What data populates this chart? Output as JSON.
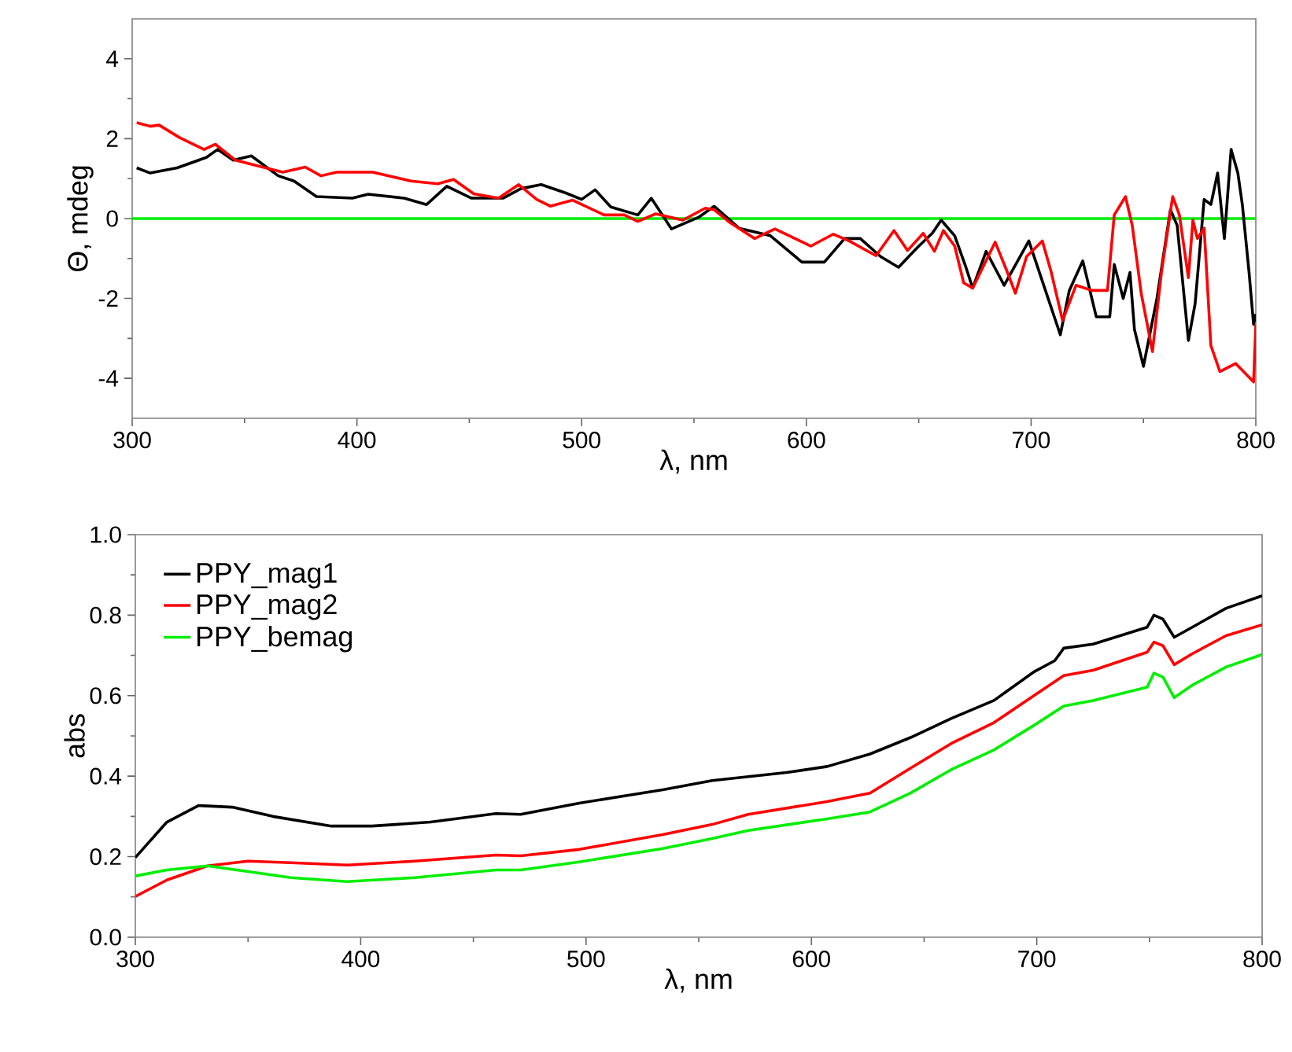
{
  "chart_data": [
    {
      "type": "line",
      "xlabel": "λ, nm",
      "ylabel": "Θ, mdeg",
      "xlim": [
        300,
        800
      ],
      "ylim": [
        -5,
        5
      ],
      "xticks": [
        300,
        400,
        500,
        600,
        700,
        800
      ],
      "yticks": [
        -4,
        -2,
        0,
        2,
        4
      ],
      "legend": false,
      "ref_lines": [
        {
          "axis": "y",
          "value": 0,
          "color": "#00ee00"
        }
      ],
      "series": [
        {
          "color": "#000000",
          "x": [
            302,
            308,
            320,
            333,
            338,
            345,
            353,
            365,
            372,
            382,
            398,
            405,
            421,
            431,
            440,
            451,
            465,
            473,
            482,
            493,
            500,
            506,
            513,
            525,
            531,
            540,
            552,
            559,
            570,
            584,
            598,
            608,
            617,
            624,
            633,
            641,
            650,
            656,
            660,
            666,
            671,
            674,
            680,
            688,
            699,
            708,
            713,
            717,
            723,
            729,
            735,
            737,
            741,
            744,
            746,
            750,
            756,
            762,
            765,
            770,
            773,
            777,
            780,
            783,
            786,
            789,
            792,
            794,
            797,
            799,
            800
          ],
          "values": [
            1.27,
            1.14,
            1.27,
            1.53,
            1.73,
            1.46,
            1.57,
            1.07,
            0.94,
            0.55,
            0.51,
            0.61,
            0.51,
            0.35,
            0.81,
            0.51,
            0.51,
            0.75,
            0.85,
            0.64,
            0.48,
            0.72,
            0.29,
            0.09,
            0.51,
            -0.26,
            0.03,
            0.31,
            -0.24,
            -0.43,
            -1.09,
            -1.09,
            -0.5,
            -0.5,
            -0.95,
            -1.22,
            -0.69,
            -0.37,
            -0.04,
            -0.43,
            -1.22,
            -1.74,
            -0.82,
            -1.67,
            -0.56,
            -2.07,
            -2.91,
            -1.8,
            -1.06,
            -2.46,
            -2.46,
            -1.15,
            -2.0,
            -1.35,
            -2.78,
            -3.7,
            -2.0,
            0.22,
            -0.17,
            -3.05,
            -2.13,
            0.48,
            0.35,
            1.14,
            -0.5,
            1.73,
            1.14,
            0.35,
            -1.35,
            -2.65,
            -2.39
          ]
        },
        {
          "color": "#ff0000",
          "x": [
            302,
            308,
            312,
            321,
            332,
            337,
            346,
            358,
            367,
            377,
            384,
            391,
            407,
            424,
            436,
            443,
            452,
            463,
            472,
            480,
            486,
            496,
            510,
            519,
            525,
            533,
            545,
            555,
            559,
            566,
            577,
            586,
            602,
            612,
            619,
            631,
            639,
            645,
            652,
            657,
            661,
            666,
            670,
            674,
            684,
            689,
            693,
            698,
            705,
            709,
            714,
            720,
            727,
            734,
            737,
            742,
            745,
            749,
            754,
            758,
            763,
            766,
            770,
            772,
            774,
            777,
            780,
            784,
            787,
            791,
            796,
            799,
            800
          ],
          "values": [
            2.4,
            2.31,
            2.34,
            2.03,
            1.73,
            1.86,
            1.46,
            1.29,
            1.16,
            1.29,
            1.07,
            1.16,
            1.16,
            0.94,
            0.87,
            0.98,
            0.62,
            0.51,
            0.85,
            0.48,
            0.31,
            0.46,
            0.09,
            0.09,
            -0.07,
            0.12,
            -0.04,
            0.26,
            0.22,
            -0.1,
            -0.5,
            -0.26,
            -0.69,
            -0.39,
            -0.56,
            -0.93,
            -0.3,
            -0.8,
            -0.37,
            -0.82,
            -0.3,
            -0.69,
            -1.61,
            -1.74,
            -0.59,
            -1.28,
            -1.87,
            -0.95,
            -0.56,
            -1.35,
            -2.55,
            -1.67,
            -1.8,
            -1.8,
            0.09,
            0.55,
            -0.17,
            -1.87,
            -3.33,
            -1.35,
            0.55,
            0.09,
            -1.48,
            -0.04,
            -0.5,
            -0.24,
            -3.18,
            -3.83,
            null,
            -3.63,
            null,
            -4.09,
            -2.65
          ]
        }
      ]
    },
    {
      "type": "line",
      "xlabel": "λ, nm",
      "ylabel": "abs",
      "xlim": [
        300,
        800
      ],
      "ylim": [
        0,
        1
      ],
      "xticks": [
        300,
        400,
        500,
        600,
        700,
        800
      ],
      "yticks": [
        {
          "value": 0,
          "label": "0.0"
        },
        {
          "value": 0.2,
          "label": "0.2"
        },
        {
          "value": 0.4,
          "label": "0.4"
        },
        {
          "value": 0.6,
          "label": "0.6"
        },
        {
          "value": 0.8,
          "label": "0.8"
        },
        {
          "value": 1,
          "label": "1.0"
        }
      ],
      "legend": "top left",
      "series": [
        {
          "name": "PPY_mag1",
          "color": "#000000",
          "x": [
            300,
            314,
            328,
            343,
            361,
            387,
            405,
            431,
            460,
            471,
            497,
            534,
            556,
            589,
            607,
            626,
            644,
            662,
            681,
            699,
            708,
            712,
            725,
            749,
            752,
            756,
            761,
            769,
            784,
            800
          ],
          "values": [
            0.198,
            0.286,
            0.327,
            0.323,
            0.3,
            0.276,
            0.276,
            0.286,
            0.307,
            0.305,
            0.333,
            0.366,
            0.389,
            0.409,
            0.424,
            0.455,
            0.496,
            0.543,
            0.588,
            0.66,
            0.687,
            0.718,
            0.728,
            0.77,
            0.8,
            0.79,
            0.745,
            0.77,
            0.817,
            0.848
          ]
        },
        {
          "name": "PPY_mag2",
          "color": "#ff0000",
          "x": [
            300,
            314,
            332,
            350,
            369,
            394,
            424,
            460,
            471,
            497,
            534,
            556,
            572,
            607,
            626,
            644,
            662,
            681,
            699,
            712,
            725,
            749,
            752,
            756,
            761,
            769,
            784,
            800
          ],
          "values": [
            0.101,
            0.142,
            0.177,
            0.189,
            0.185,
            0.179,
            0.189,
            0.204,
            0.202,
            0.218,
            0.255,
            0.28,
            0.305,
            0.337,
            0.358,
            0.42,
            0.481,
            0.533,
            0.601,
            0.65,
            0.663,
            0.708,
            0.733,
            0.724,
            0.677,
            0.704,
            0.749,
            0.776
          ]
        },
        {
          "name": "PPY_bemag",
          "color": "#00ee00",
          "x": [
            300,
            314,
            332,
            350,
            369,
            394,
            424,
            460,
            471,
            497,
            534,
            556,
            572,
            607,
            626,
            644,
            662,
            681,
            699,
            712,
            725,
            749,
            752,
            756,
            761,
            769,
            784,
            800
          ],
          "values": [
            0.152,
            0.167,
            0.177,
            0.163,
            0.148,
            0.138,
            0.148,
            0.167,
            0.167,
            0.187,
            0.22,
            0.245,
            0.265,
            0.294,
            0.311,
            0.358,
            0.416,
            0.465,
            0.527,
            0.574,
            0.588,
            0.621,
            0.656,
            0.646,
            0.595,
            0.626,
            0.671,
            0.702
          ]
        }
      ]
    }
  ]
}
